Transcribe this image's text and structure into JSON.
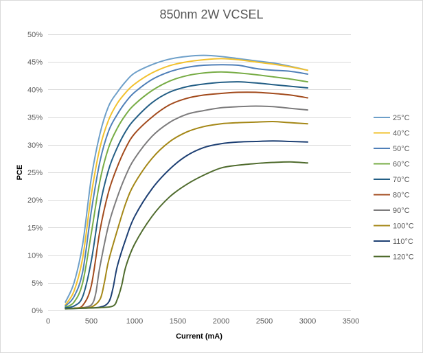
{
  "chart_data": {
    "type": "line",
    "title": "850nm  2W VCSEL",
    "xlabel": "Current (mA)",
    "ylabel": "PCE",
    "xlim": [
      0,
      3500
    ],
    "ylim": [
      0,
      50
    ],
    "x_ticks": [
      0,
      500,
      1000,
      1500,
      2000,
      2500,
      3000,
      3500
    ],
    "y_ticks": [
      0,
      5,
      10,
      15,
      20,
      25,
      30,
      35,
      40,
      45,
      50
    ],
    "y_tick_format": "percent",
    "grid": "horizontal",
    "legend_position": "right",
    "series": [
      {
        "name": "25°C",
        "color": "#6d9fc9",
        "points": [
          [
            200,
            1.5
          ],
          [
            300,
            5
          ],
          [
            400,
            12
          ],
          [
            500,
            24
          ],
          [
            600,
            32
          ],
          [
            700,
            37
          ],
          [
            800,
            39.5
          ],
          [
            900,
            41.5
          ],
          [
            1000,
            43
          ],
          [
            1200,
            44.5
          ],
          [
            1400,
            45.5
          ],
          [
            1600,
            46
          ],
          [
            1800,
            46.2
          ],
          [
            2000,
            46
          ],
          [
            2200,
            45.6
          ],
          [
            2400,
            45.2
          ],
          [
            2600,
            44.8
          ],
          [
            2800,
            44.2
          ],
          [
            3000,
            43.5
          ]
        ]
      },
      {
        "name": "40°C",
        "color": "#f2c12e",
        "points": [
          [
            200,
            1
          ],
          [
            300,
            3.5
          ],
          [
            400,
            9.5
          ],
          [
            500,
            21
          ],
          [
            600,
            29.5
          ],
          [
            700,
            34.5
          ],
          [
            800,
            37.5
          ],
          [
            900,
            39.5
          ],
          [
            1000,
            41
          ],
          [
            1200,
            43
          ],
          [
            1400,
            44.3
          ],
          [
            1600,
            45
          ],
          [
            1800,
            45.4
          ],
          [
            2000,
            45.6
          ],
          [
            2200,
            45.4
          ],
          [
            2400,
            45
          ],
          [
            2600,
            44.6
          ],
          [
            2800,
            44.1
          ],
          [
            3000,
            43.5
          ]
        ]
      },
      {
        "name": "50°C",
        "color": "#4f7fb8",
        "points": [
          [
            200,
            0.8
          ],
          [
            300,
            2.5
          ],
          [
            400,
            7
          ],
          [
            500,
            18
          ],
          [
            600,
            27
          ],
          [
            700,
            32.5
          ],
          [
            800,
            35.5
          ],
          [
            900,
            37.8
          ],
          [
            1000,
            39.5
          ],
          [
            1200,
            41.8
          ],
          [
            1400,
            43.2
          ],
          [
            1600,
            44
          ],
          [
            1800,
            44.4
          ],
          [
            2000,
            44.5
          ],
          [
            2200,
            44.4
          ],
          [
            2400,
            43.8
          ],
          [
            2600,
            43.5
          ],
          [
            2800,
            43.3
          ],
          [
            3000,
            42.8
          ]
        ]
      },
      {
        "name": "60°C",
        "color": "#77ac45",
        "points": [
          [
            200,
            0.6
          ],
          [
            300,
            1.5
          ],
          [
            400,
            5
          ],
          [
            500,
            14
          ],
          [
            600,
            23.5
          ],
          [
            700,
            29.5
          ],
          [
            800,
            33
          ],
          [
            900,
            35.5
          ],
          [
            1000,
            37.3
          ],
          [
            1200,
            39.8
          ],
          [
            1400,
            41.5
          ],
          [
            1600,
            42.5
          ],
          [
            1800,
            43
          ],
          [
            2000,
            43.2
          ],
          [
            2200,
            43
          ],
          [
            2400,
            42.7
          ],
          [
            2600,
            42.3
          ],
          [
            2800,
            41.9
          ],
          [
            3000,
            41.4
          ]
        ]
      },
      {
        "name": "70°C",
        "color": "#235e85",
        "points": [
          [
            200,
            0.5
          ],
          [
            300,
            0.8
          ],
          [
            400,
            2.5
          ],
          [
            500,
            9
          ],
          [
            600,
            19
          ],
          [
            700,
            25.5
          ],
          [
            800,
            29.5
          ],
          [
            900,
            32.5
          ],
          [
            1000,
            34.6
          ],
          [
            1200,
            37.6
          ],
          [
            1400,
            39.5
          ],
          [
            1600,
            40.5
          ],
          [
            1800,
            41
          ],
          [
            2000,
            41.3
          ],
          [
            2200,
            41.4
          ],
          [
            2400,
            41.2
          ],
          [
            2600,
            40.9
          ],
          [
            2800,
            40.6
          ],
          [
            3000,
            40.3
          ]
        ]
      },
      {
        "name": "80°C",
        "color": "#a24a1c",
        "points": [
          [
            300,
            0.4
          ],
          [
            400,
            0.9
          ],
          [
            500,
            4.5
          ],
          [
            600,
            14.5
          ],
          [
            700,
            21.5
          ],
          [
            800,
            26
          ],
          [
            900,
            29.5
          ],
          [
            1000,
            32
          ],
          [
            1200,
            35
          ],
          [
            1400,
            37.2
          ],
          [
            1600,
            38.4
          ],
          [
            1800,
            39
          ],
          [
            2000,
            39.3
          ],
          [
            2200,
            39.5
          ],
          [
            2400,
            39.5
          ],
          [
            2600,
            39.3
          ],
          [
            2800,
            39
          ],
          [
            3000,
            38.5
          ]
        ]
      },
      {
        "name": "90°C",
        "color": "#7c7b7c",
        "points": [
          [
            300,
            0.4
          ],
          [
            400,
            0.5
          ],
          [
            500,
            1
          ],
          [
            550,
            3
          ],
          [
            600,
            8
          ],
          [
            700,
            15.5
          ],
          [
            800,
            20.5
          ],
          [
            900,
            24.5
          ],
          [
            1000,
            27.5
          ],
          [
            1200,
            31.5
          ],
          [
            1400,
            34
          ],
          [
            1600,
            35.5
          ],
          [
            1800,
            36.2
          ],
          [
            2000,
            36.7
          ],
          [
            2200,
            36.9
          ],
          [
            2400,
            37
          ],
          [
            2600,
            36.9
          ],
          [
            2800,
            36.6
          ],
          [
            3000,
            36.3
          ]
        ]
      },
      {
        "name": "100°C",
        "color": "#a48716",
        "points": [
          [
            300,
            0.4
          ],
          [
            400,
            0.5
          ],
          [
            500,
            0.6
          ],
          [
            600,
            2
          ],
          [
            650,
            5
          ],
          [
            700,
            9
          ],
          [
            800,
            14.5
          ],
          [
            900,
            19.5
          ],
          [
            1000,
            23
          ],
          [
            1200,
            27.5
          ],
          [
            1400,
            30.5
          ],
          [
            1600,
            32.3
          ],
          [
            1800,
            33.3
          ],
          [
            2000,
            33.8
          ],
          [
            2200,
            34
          ],
          [
            2400,
            34.1
          ],
          [
            2600,
            34.2
          ],
          [
            2800,
            34
          ],
          [
            3000,
            33.8
          ]
        ]
      },
      {
        "name": "110°C",
        "color": "#1d3f73",
        "points": [
          [
            200,
            0.3
          ],
          [
            400,
            0.4
          ],
          [
            600,
            0.6
          ],
          [
            700,
            1.5
          ],
          [
            750,
            4
          ],
          [
            800,
            8
          ],
          [
            900,
            13
          ],
          [
            1000,
            17
          ],
          [
            1200,
            22
          ],
          [
            1400,
            25.5
          ],
          [
            1600,
            28
          ],
          [
            1800,
            29.5
          ],
          [
            2000,
            30.2
          ],
          [
            2200,
            30.5
          ],
          [
            2400,
            30.6
          ],
          [
            2600,
            30.7
          ],
          [
            2800,
            30.6
          ],
          [
            3000,
            30.5
          ]
        ]
      },
      {
        "name": "120°C",
        "color": "#4f6b2d",
        "points": [
          [
            200,
            0.3
          ],
          [
            400,
            0.4
          ],
          [
            600,
            0.5
          ],
          [
            750,
            0.8
          ],
          [
            800,
            2
          ],
          [
            850,
            4.5
          ],
          [
            900,
            8
          ],
          [
            1000,
            12
          ],
          [
            1200,
            17
          ],
          [
            1400,
            20.5
          ],
          [
            1600,
            22.8
          ],
          [
            1800,
            24.5
          ],
          [
            2000,
            25.8
          ],
          [
            2200,
            26.3
          ],
          [
            2400,
            26.6
          ],
          [
            2600,
            26.8
          ],
          [
            2800,
            26.9
          ],
          [
            3000,
            26.7
          ]
        ]
      }
    ]
  }
}
